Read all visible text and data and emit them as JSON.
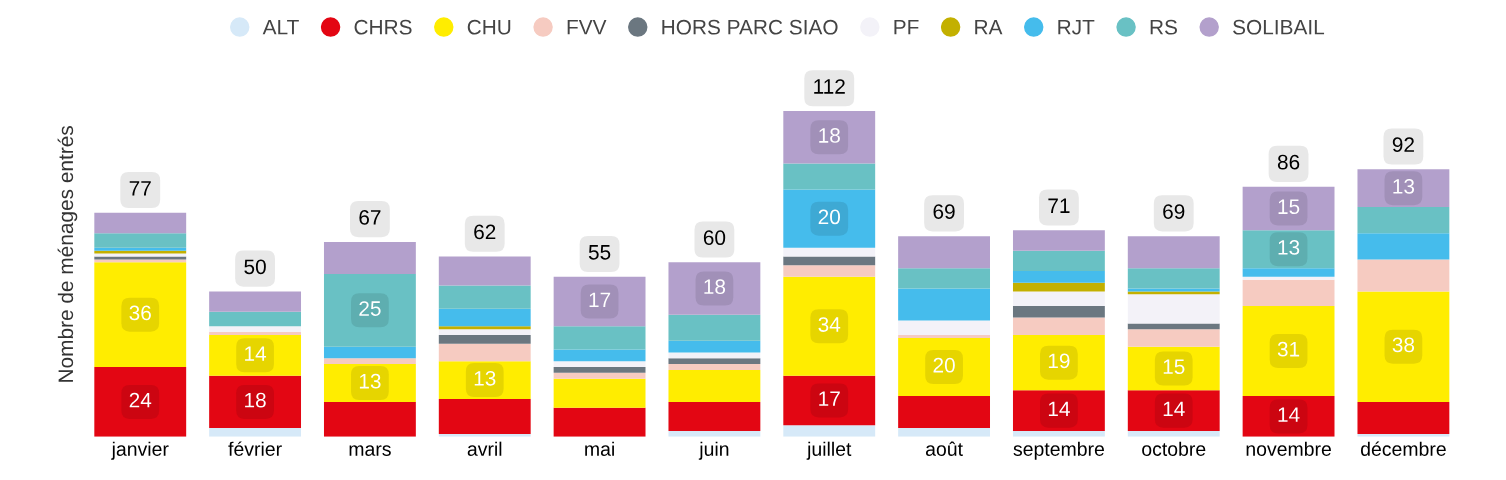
{
  "chart_data": {
    "type": "bar",
    "stacked": true,
    "ylabel": "Nombre de ménages entrés",
    "legend": "top",
    "grid": false,
    "categories": [
      "janvier",
      "février",
      "mars",
      "avril",
      "mai",
      "juin",
      "juillet",
      "août",
      "septembre",
      "octobre",
      "novembre",
      "décembre"
    ],
    "series": [
      {
        "name": "ALT",
        "color": "#d6e9f8",
        "values": [
          0,
          3,
          0,
          1,
          0,
          2,
          4,
          3,
          2,
          2,
          0,
          1
        ]
      },
      {
        "name": "CHRS",
        "color": "#e30613",
        "values": [
          24,
          18,
          12,
          12,
          10,
          10,
          17,
          11,
          14,
          14,
          14,
          11
        ],
        "value_labels": [
          "24",
          "18",
          null,
          null,
          null,
          null,
          "17",
          null,
          "14",
          "14",
          "14",
          null
        ]
      },
      {
        "name": "CHU",
        "color": "#ffed00",
        "values": [
          36,
          14,
          13,
          13,
          10,
          11,
          34,
          20,
          19,
          15,
          31,
          38
        ],
        "value_labels": [
          "36",
          "14",
          "13",
          "13",
          null,
          null,
          "34",
          "20",
          "19",
          "15",
          "31",
          "38"
        ]
      },
      {
        "name": "FVV",
        "color": "#f6cbc1",
        "values": [
          1,
          1,
          2,
          6,
          2,
          2,
          4,
          1,
          6,
          6,
          9,
          11
        ]
      },
      {
        "name": "HORS PARC SIAO",
        "color": "#6b7780",
        "values": [
          1,
          0,
          0,
          3,
          2,
          2,
          3,
          0,
          4,
          2,
          0,
          0
        ]
      },
      {
        "name": "PF",
        "color": "#f3f2f8",
        "values": [
          1,
          2,
          0,
          2,
          2,
          2,
          3,
          5,
          5,
          10,
          1,
          0
        ]
      },
      {
        "name": "RA",
        "color": "#c3b000",
        "values": [
          1,
          0,
          0,
          1,
          0,
          0,
          0,
          0,
          3,
          1,
          0,
          0
        ]
      },
      {
        "name": "RJT",
        "color": "#45bcec",
        "values": [
          1,
          0,
          4,
          6,
          4,
          4,
          20,
          11,
          4,
          1,
          3,
          9
        ],
        "value_labels": [
          null,
          null,
          null,
          null,
          null,
          null,
          "20",
          null,
          null,
          null,
          null,
          null
        ]
      },
      {
        "name": "RS",
        "color": "#69c1c4",
        "values": [
          5,
          5,
          25,
          8,
          8,
          9,
          9,
          7,
          7,
          7,
          13,
          9
        ],
        "value_labels": [
          null,
          null,
          "25",
          null,
          null,
          null,
          null,
          null,
          null,
          null,
          "13",
          null
        ]
      },
      {
        "name": "SOLIBAIL",
        "color": "#b3a0cc",
        "values": [
          7,
          7,
          11,
          10,
          17,
          18,
          18,
          11,
          7,
          11,
          15,
          13
        ],
        "value_labels": [
          null,
          null,
          null,
          null,
          "17",
          "18",
          "18",
          null,
          null,
          null,
          "15",
          "13"
        ]
      }
    ],
    "totals": [
      "77",
      "50",
      "67",
      "62",
      "55",
      "60",
      "112",
      "69",
      "71",
      "69",
      "86",
      "92"
    ]
  }
}
